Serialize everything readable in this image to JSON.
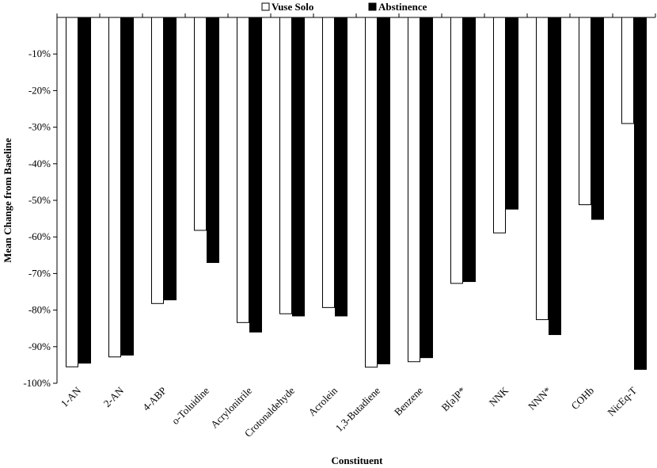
{
  "chart_data": {
    "type": "bar",
    "categories": [
      "1-AN",
      "2-AN",
      "4-ABP",
      "o-Toluidine",
      "Acrylonitrile",
      "Crotonaldehyde",
      "Acrolein",
      "1,3-Butadiene",
      "Benzene",
      "B[a]P*",
      "NNK",
      "NNN*",
      "COHb",
      "NicEq-T"
    ],
    "series": [
      {
        "name": "Vuse Solo",
        "color": "#ffffff",
        "values": [
          -95.5,
          -92.8,
          -78.2,
          -58.2,
          -83.4,
          -81.0,
          -79.3,
          -95.6,
          -94.1,
          -72.7,
          -58.9,
          -82.6,
          -51.2,
          -29.0
        ]
      },
      {
        "name": "Abstinence",
        "color": "#000000",
        "values": [
          -94.5,
          -92.3,
          -77.2,
          -67.0,
          -86.0,
          -81.6,
          -81.6,
          -94.7,
          -93.0,
          -72.2,
          -52.4,
          -86.7,
          -55.2,
          -96.2
        ]
      }
    ],
    "title": "",
    "xlabel": "Constituent",
    "ylabel": "Mean Change from Baseline",
    "ylim": [
      -100,
      0
    ],
    "yticks": [
      "-10%",
      "-20%",
      "-30%",
      "-40%",
      "-50%",
      "-60%",
      "-70%",
      "-80%",
      "-90%",
      "-100%"
    ],
    "legend_position": "top-center"
  }
}
